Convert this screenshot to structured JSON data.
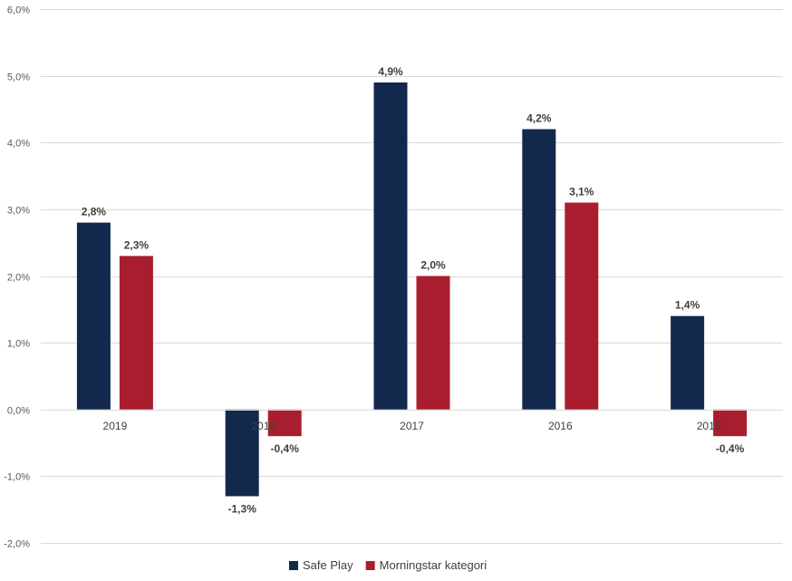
{
  "chart_data": {
    "type": "bar",
    "categories": [
      "2019",
      "2018",
      "2017",
      "2016",
      "2015"
    ],
    "series": [
      {
        "name": "Safe Play",
        "values": [
          2.8,
          -1.3,
          4.9,
          4.2,
          1.4
        ],
        "labels": [
          "2,8%",
          "-1,3%",
          "4,9%",
          "4,2%",
          "1,4%"
        ],
        "color": "#13284d"
      },
      {
        "name": "Morningstar kategori",
        "values": [
          2.3,
          -0.4,
          2.0,
          3.1,
          -0.4
        ],
        "labels": [
          "2,3%",
          "-0,4%",
          "2,0%",
          "3,1%",
          "-0,4%"
        ],
        "color": "#a81e2f"
      }
    ],
    "ylim": [
      -2.0,
      6.0
    ],
    "yticks": [
      6.0,
      5.0,
      4.0,
      3.0,
      2.0,
      1.0,
      0.0,
      -1.0,
      -2.0
    ],
    "ytick_labels": [
      "6,0%",
      "5,0%",
      "4,0%",
      "3,0%",
      "2,0%",
      "1,0%",
      "0,0%",
      "-1,0%",
      "-2,0%"
    ],
    "grid": true,
    "legend_position": "bottom-center"
  }
}
